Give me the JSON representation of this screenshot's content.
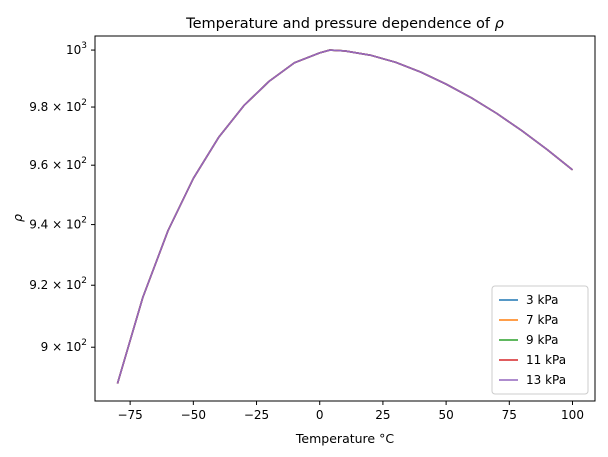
{
  "chart_data": {
    "type": "line",
    "title": "Temperature and pressure dependence of ",
    "title_symbol": "ρ",
    "xlabel": "Temperature °C",
    "ylabel": "ρ",
    "xlim": [
      -88.9,
      108.9
    ],
    "ylim": [
      883.0,
      1005.0
    ],
    "yscale": "log",
    "grid": false,
    "legend_position": "lower-right",
    "x_ticks": [
      -75,
      -50,
      -25,
      0,
      25,
      50,
      75,
      100
    ],
    "x_tick_labels": [
      "−75",
      "−50",
      "−25",
      "0",
      "25",
      "50",
      "75",
      "100"
    ],
    "y_ticks": [
      {
        "value": 900,
        "mantissa": "9 × 10",
        "exp": "2"
      },
      {
        "value": 920,
        "mantissa": "9.2 × 10",
        "exp": "2"
      },
      {
        "value": 940,
        "mantissa": "9.4 × 10",
        "exp": "2"
      },
      {
        "value": 960,
        "mantissa": "9.6 × 10",
        "exp": "2"
      },
      {
        "value": 980,
        "mantissa": "9.8 × 10",
        "exp": "2"
      },
      {
        "value": 1000,
        "mantissa": "10",
        "exp": "3"
      }
    ],
    "x": [
      -80,
      -70,
      -60,
      -50,
      -40,
      -30,
      -20,
      -10,
      0,
      4,
      10,
      20,
      30,
      40,
      50,
      60,
      70,
      80,
      90,
      100
    ],
    "series": [
      {
        "name": "3 kPa",
        "color": "#1f77b4",
        "values": [
          888.5,
          916.0,
          938.0,
          955.5,
          969.5,
          980.5,
          989.0,
          995.5,
          999.0,
          1000.0,
          999.7,
          998.2,
          995.7,
          992.2,
          988.0,
          983.2,
          977.8,
          971.8,
          965.3,
          958.4
        ]
      },
      {
        "name": "7 kPa",
        "color": "#ff7f0e",
        "values": [
          888.5,
          916.0,
          938.0,
          955.5,
          969.5,
          980.5,
          989.0,
          995.5,
          999.0,
          1000.0,
          999.7,
          998.2,
          995.7,
          992.2,
          988.0,
          983.2,
          977.8,
          971.8,
          965.3,
          958.4
        ]
      },
      {
        "name": "9 kPa",
        "color": "#2ca02c",
        "values": [
          888.5,
          916.0,
          938.0,
          955.5,
          969.5,
          980.5,
          989.0,
          995.5,
          999.0,
          1000.0,
          999.7,
          998.2,
          995.7,
          992.2,
          988.0,
          983.2,
          977.8,
          971.8,
          965.3,
          958.4
        ]
      },
      {
        "name": "11 kPa",
        "color": "#d62728",
        "values": [
          888.5,
          916.0,
          938.0,
          955.5,
          969.5,
          980.5,
          989.0,
          995.5,
          999.0,
          1000.0,
          999.7,
          998.2,
          995.7,
          992.2,
          988.0,
          983.2,
          977.8,
          971.8,
          965.3,
          958.4
        ]
      },
      {
        "name": "13 kPa",
        "color": "#9467bd",
        "values": [
          888.5,
          916.0,
          938.0,
          955.5,
          969.5,
          980.5,
          989.0,
          995.5,
          999.0,
          1000.0,
          999.7,
          998.2,
          995.7,
          992.2,
          988.0,
          983.2,
          977.8,
          971.8,
          965.3,
          958.4
        ]
      }
    ]
  }
}
